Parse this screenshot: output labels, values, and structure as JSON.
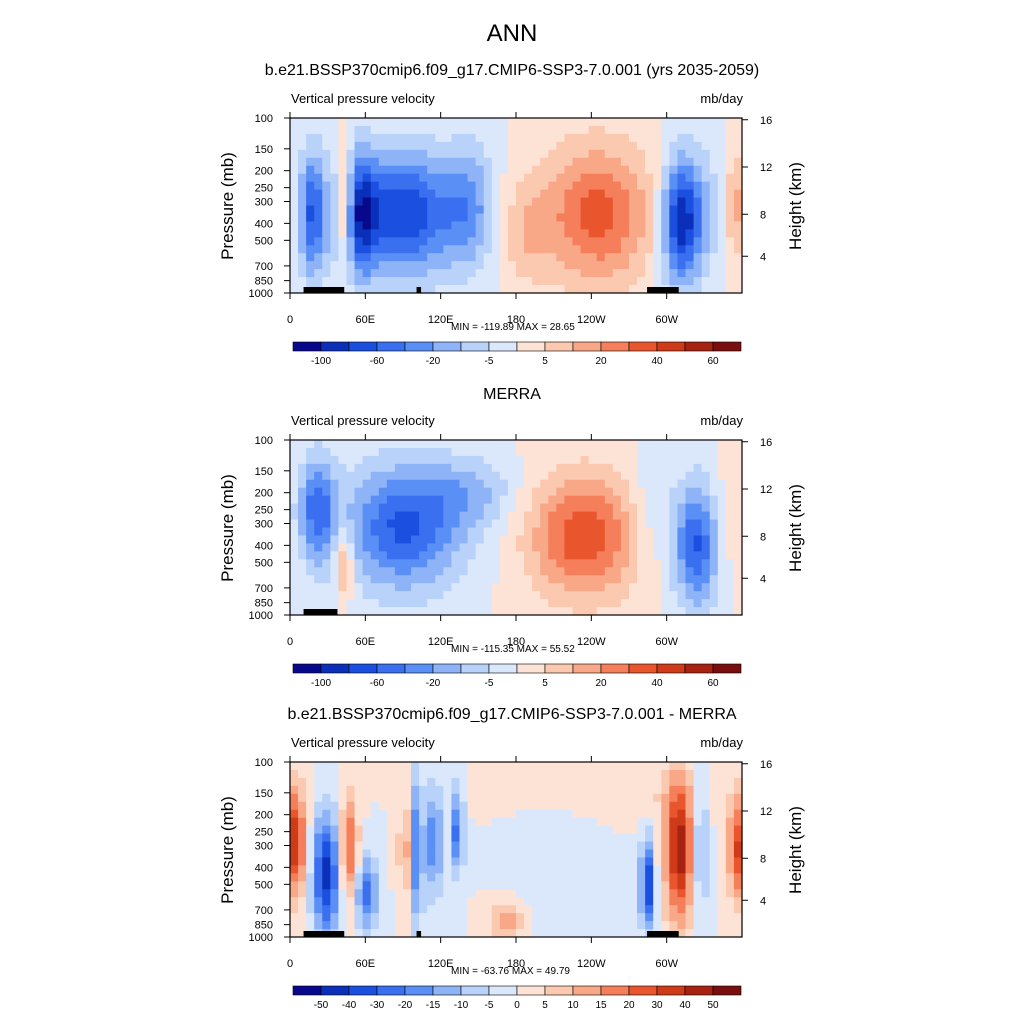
{
  "title": "ANN",
  "chart_data": [
    {
      "type": "heatmap",
      "title": "b.e21.BSSP370cmip6.f09_g17.CMIP6-SSP3-7.0.001 (yrs 2035-2059)",
      "left_label": "Vertical pressure velocity",
      "right_label": "mb/day",
      "ylabel": "Pressure (mb)",
      "ylabel_right": "Height (km)",
      "x_ticks": [
        "0",
        "60E",
        "120E",
        "180",
        "120W",
        "60W"
      ],
      "y_ticks": [
        "100",
        "150",
        "200",
        "250",
        "300",
        "400",
        "500",
        "700",
        "850",
        "1000"
      ],
      "y_right_ticks": [
        "16",
        "12",
        "8",
        "4"
      ],
      "stats": "MIN = -119.89  MAX =  28.65",
      "min": -119.89,
      "max": 28.65,
      "colorbar_labels": [
        "-100",
        "-60",
        "-20",
        "-5",
        "5",
        "20",
        "40",
        "60"
      ]
    },
    {
      "type": "heatmap",
      "title": "MERRA",
      "left_label": "Vertical pressure velocity",
      "right_label": "mb/day",
      "ylabel": "Pressure (mb)",
      "ylabel_right": "Height (km)",
      "x_ticks": [
        "0",
        "60E",
        "120E",
        "180",
        "120W",
        "60W"
      ],
      "y_ticks": [
        "100",
        "150",
        "200",
        "250",
        "300",
        "400",
        "500",
        "700",
        "850",
        "1000"
      ],
      "y_right_ticks": [
        "16",
        "12",
        "8",
        "4"
      ],
      "stats": "MIN = -115.35  MAX =  55.52",
      "min": -115.35,
      "max": 55.52,
      "colorbar_labels": [
        "-100",
        "-60",
        "-20",
        "-5",
        "5",
        "20",
        "40",
        "60"
      ]
    },
    {
      "type": "heatmap",
      "title": "b.e21.BSSP370cmip6.f09_g17.CMIP6-SSP3-7.0.001 - MERRA",
      "left_label": "Vertical pressure velocity",
      "right_label": "mb/day",
      "ylabel": "Pressure (mb)",
      "ylabel_right": "Height (km)",
      "x_ticks": [
        "0",
        "60E",
        "120E",
        "180",
        "120W",
        "60W"
      ],
      "y_ticks": [
        "100",
        "150",
        "200",
        "250",
        "300",
        "400",
        "500",
        "700",
        "850",
        "1000"
      ],
      "y_right_ticks": [
        "16",
        "12",
        "8",
        "4"
      ],
      "stats": "MIN = -63.76  MAX =  49.79",
      "min": -63.76,
      "max": 49.79,
      "colorbar_labels": [
        "-50",
        "-40",
        "-30",
        "-20",
        "-15",
        "-10",
        "-5",
        "0",
        "5",
        "10",
        "15",
        "20",
        "30",
        "40",
        "50"
      ]
    }
  ],
  "palette": [
    "#08088c",
    "#0a2fb8",
    "#1a4fe0",
    "#3a6ff0",
    "#5a8ff5",
    "#8fb3f7",
    "#b8d2fa",
    "#dbe8fc",
    "#fde3d5",
    "#fbc9b0",
    "#f8a887",
    "#f47f5a",
    "#e9562e",
    "#cf3a18",
    "#a82212",
    "#7a0d0d"
  ]
}
